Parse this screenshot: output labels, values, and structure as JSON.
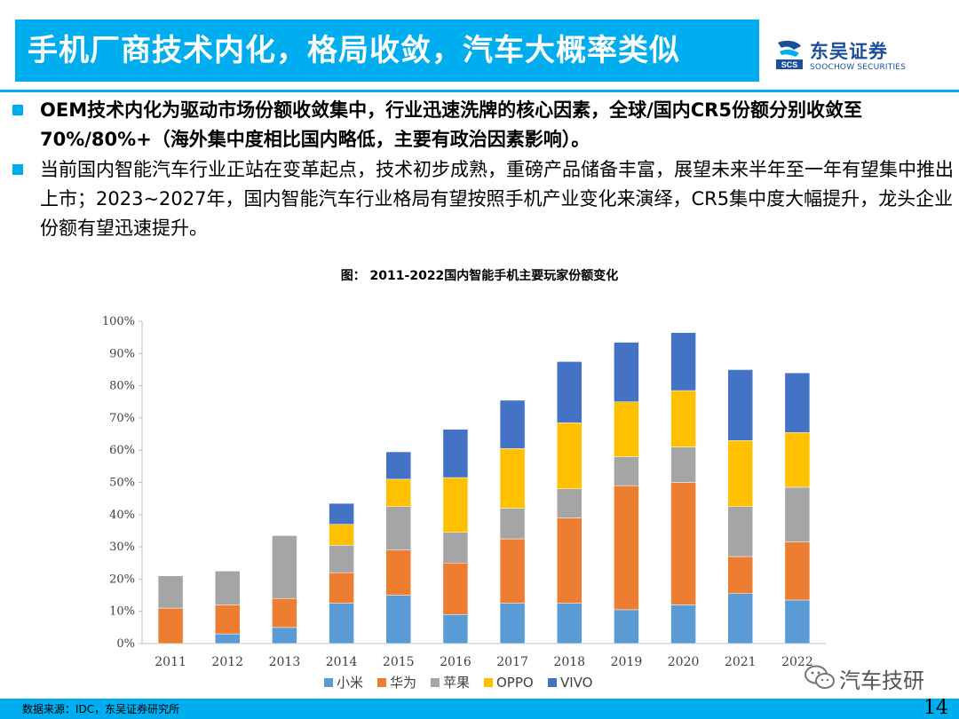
{
  "header": {
    "title": "手机厂商技术内化，格局收敛，汽车大概率类似",
    "logo_cn": "东吴证券",
    "logo_en": "SOOCHOW SECURITIES",
    "logo_mark": "SCS"
  },
  "bullets": [
    "OEM技术内化为驱动市场份额收敛集中，行业迅速洗牌的核心因素，全球/国内CR5份额分别收敛至70%/80%+（海外集中度相比国内略低，主要有政治因素影响）。",
    "当前国内智能汽车行业正站在变革起点，技术初步成熟，重磅产品储备丰富，展望未来半年至一年有望集中推出上市；2023~2027年，国内智能汽车行业格局有望按照手机产业变化来演绎，CR5集中度大幅提升，龙头企业份额有望迅速提升。"
  ],
  "chart_title": "图：  2011-2022国内智能手机主要玩家份额变化",
  "chart_data": {
    "type": "bar",
    "stacked": true,
    "title": "图：  2011-2022国内智能手机主要玩家份额变化",
    "categories": [
      "2011",
      "2012",
      "2013",
      "2014",
      "2015",
      "2016",
      "2017",
      "2018",
      "2019",
      "2020",
      "2021",
      "2022"
    ],
    "ylim": [
      0,
      100
    ],
    "yticks": [
      "0%",
      "10%",
      "20%",
      "30%",
      "40%",
      "50%",
      "60%",
      "70%",
      "80%",
      "90%",
      "100%"
    ],
    "legend_position": "bottom",
    "grid": false,
    "series": [
      {
        "name": "小米",
        "color": "#5b9bd5",
        "values": [
          0,
          3,
          5,
          12.5,
          15,
          9,
          12.5,
          12.5,
          10.5,
          12,
          15.5,
          13.5
        ]
      },
      {
        "name": "华为",
        "color": "#ed7d31",
        "values": [
          11,
          9,
          9,
          9.5,
          14,
          16,
          20,
          26.5,
          38.5,
          38,
          11.5,
          18
        ]
      },
      {
        "name": "苹果",
        "color": "#a5a5a5",
        "values": [
          10,
          10.5,
          19.5,
          8.5,
          13.5,
          9.5,
          9.5,
          9,
          9,
          11,
          15.5,
          17
        ]
      },
      {
        "name": "OPPO",
        "color": "#ffc000",
        "values": [
          0,
          0,
          0,
          6.5,
          8.5,
          17,
          18.5,
          20.5,
          17,
          17.5,
          20.5,
          17
        ]
      },
      {
        "name": "VIVO",
        "color": "#4472c4",
        "values": [
          0,
          0,
          0,
          6.5,
          8.5,
          15,
          15,
          19,
          18.5,
          18,
          22,
          18.5
        ]
      }
    ]
  },
  "footer": {
    "source": "数据来源：IDC，东吴证券研究所",
    "page": "14",
    "watermark": "汽车技研"
  }
}
